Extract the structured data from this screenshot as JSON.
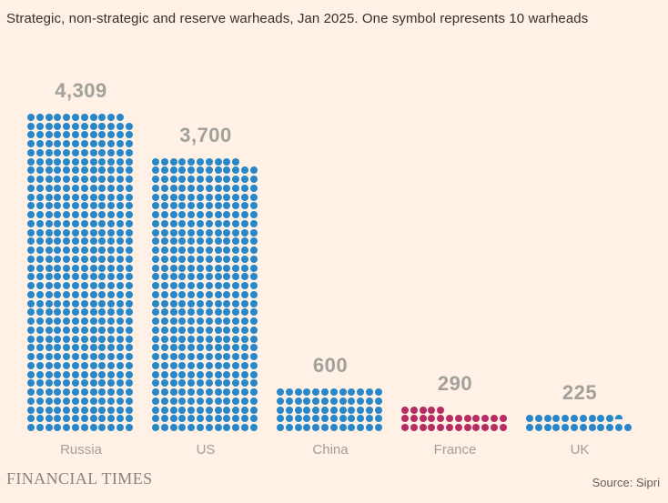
{
  "title": "Strategic, non-strategic and reserve warheads, Jan 2025. One symbol represents 10 warheads",
  "footer": {
    "brand": "FINANCIAL TIMES",
    "source": "Source: Sipri"
  },
  "colors": {
    "background": "#fff1e5",
    "blue_symbol": "#2787c8",
    "pink_symbol": "#b52d62",
    "value_label": "#a2a09a",
    "country_label": "#a2a09a",
    "title_text": "#33302e",
    "brand_text": "#8c837a",
    "source_text": "#655f5a"
  },
  "chart_data": {
    "type": "pictogram",
    "title": "Strategic, non-strategic and reserve warheads, Jan 2025",
    "subtitle": "One symbol represents 10 warheads",
    "unit_per_symbol": 10,
    "symbols_per_row": 12,
    "categories": [
      "Russia",
      "US",
      "China",
      "France",
      "UK"
    ],
    "values": [
      4309,
      3700,
      600,
      290,
      225
    ],
    "value_labels": [
      "4,309",
      "3,700",
      "600",
      "290",
      "225"
    ],
    "series_colors": [
      "#2787c8",
      "#2787c8",
      "#2787c8",
      "#b52d62",
      "#2787c8"
    ],
    "legend_position": "none",
    "grid": false,
    "source": "Sipri"
  }
}
